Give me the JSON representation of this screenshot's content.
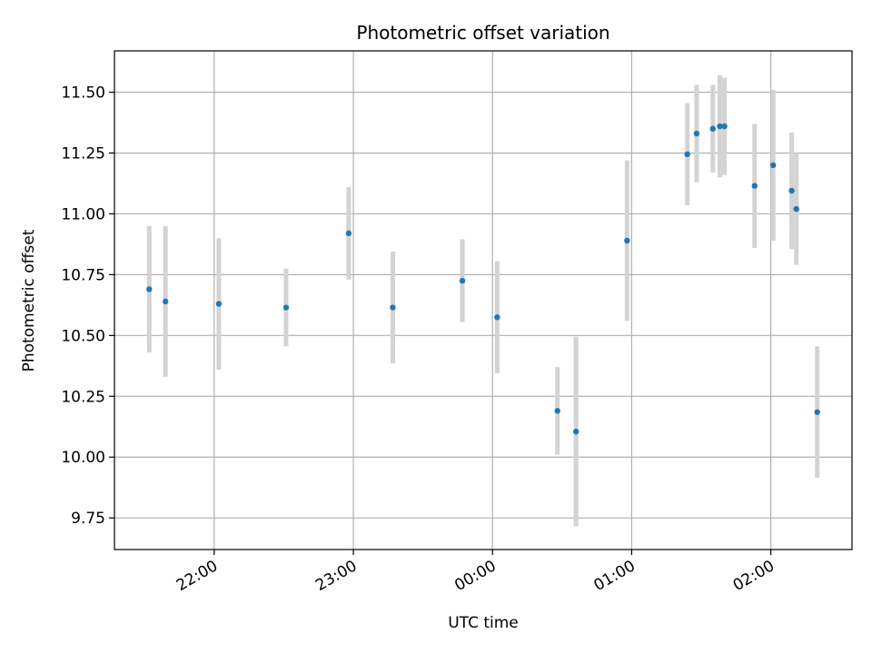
{
  "chart_data": {
    "type": "scatter",
    "title": "Photometric offset variation",
    "xlabel": "UTC time",
    "ylabel": "Photometric offset",
    "grid": true,
    "x_axis": {
      "min": "21:17",
      "max": "02:35",
      "ticks": [
        "22:00",
        "23:00",
        "00:00",
        "01:00",
        "02:00"
      ]
    },
    "y_axis": {
      "min": 9.62,
      "max": 11.67,
      "ticks": [
        "9.75",
        "10.00",
        "10.25",
        "10.50",
        "10.75",
        "11.00",
        "11.25",
        "11.50"
      ]
    },
    "colors": {
      "point": "#1f77b4",
      "errorbar": "#d3d3d3",
      "grid": "#b0b0b0"
    },
    "series": [
      {
        "points": [
          {
            "x": "21:32",
            "y": 10.69,
            "err": 0.26
          },
          {
            "x": "21:39",
            "y": 10.64,
            "err": 0.31
          },
          {
            "x": "22:02",
            "y": 10.63,
            "err": 0.27
          },
          {
            "x": "22:31",
            "y": 10.615,
            "err": 0.16
          },
          {
            "x": "22:58",
            "y": 10.92,
            "err": 0.19
          },
          {
            "x": "23:17",
            "y": 10.615,
            "err": 0.23
          },
          {
            "x": "23:47",
            "y": 10.725,
            "err": 0.17
          },
          {
            "x": "00:02",
            "y": 10.575,
            "err": 0.23
          },
          {
            "x": "00:28",
            "y": 10.19,
            "err": 0.18
          },
          {
            "x": "00:36",
            "y": 10.105,
            "err": 0.39
          },
          {
            "x": "00:58",
            "y": 10.89,
            "err": 0.33
          },
          {
            "x": "01:24",
            "y": 11.245,
            "err": 0.21
          },
          {
            "x": "01:28",
            "y": 11.33,
            "err": 0.2
          },
          {
            "x": "01:35",
            "y": 11.35,
            "err": 0.18
          },
          {
            "x": "01:38",
            "y": 11.36,
            "err": 0.21
          },
          {
            "x": "01:40",
            "y": 11.36,
            "err": 0.2
          },
          {
            "x": "01:53",
            "y": 11.115,
            "err": 0.255
          },
          {
            "x": "02:01",
            "y": 11.2,
            "err": 0.31
          },
          {
            "x": "02:09",
            "y": 11.095,
            "err": 0.24
          },
          {
            "x": "02:11",
            "y": 11.02,
            "err": 0.23
          },
          {
            "x": "02:20",
            "y": 10.185,
            "err": 0.27
          }
        ]
      }
    ]
  }
}
